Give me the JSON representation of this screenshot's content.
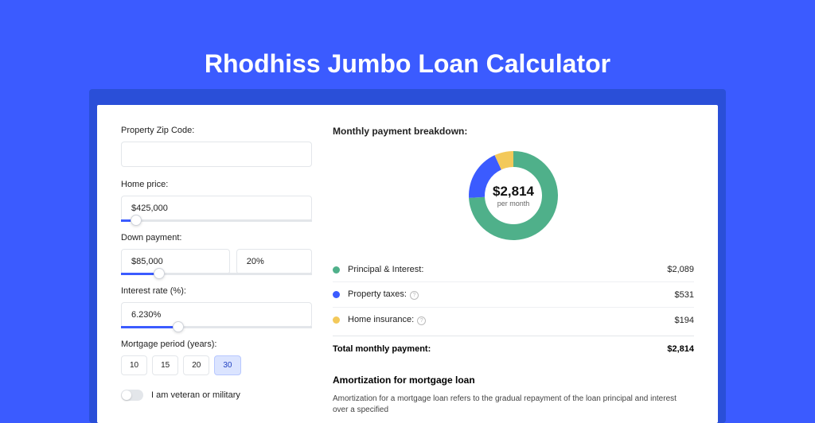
{
  "title": "Rhodhiss Jumbo Loan Calculator",
  "form": {
    "zip_label": "Property Zip Code:",
    "zip_value": "",
    "home_price_label": "Home price:",
    "home_price_value": "$425,000",
    "home_price_slider_pct": 8,
    "down_label": "Down payment:",
    "down_value": "$85,000",
    "down_pct_value": "20%",
    "down_slider_pct": 20,
    "rate_label": "Interest rate (%):",
    "rate_value": "6.230%",
    "rate_slider_pct": 30,
    "period_label": "Mortgage period (years):",
    "periods": [
      "10",
      "15",
      "20",
      "30"
    ],
    "period_active_index": 3,
    "veteran_label": "I am veteran or military"
  },
  "breakdown": {
    "title": "Monthly payment breakdown:",
    "donut": {
      "value": "$2,814",
      "sub": "per month",
      "segments": [
        {
          "label": "Principal & Interest",
          "color": "#4fb08a",
          "pct": 74.2
        },
        {
          "label": "Property taxes",
          "color": "#3b5bff",
          "pct": 18.9
        },
        {
          "label": "Home insurance",
          "color": "#f3c95a",
          "pct": 6.9
        }
      ]
    },
    "items": [
      {
        "label": "Principal & Interest:",
        "value": "$2,089",
        "color": "#4fb08a",
        "info": false
      },
      {
        "label": "Property taxes:",
        "value": "$531",
        "color": "#3b5bff",
        "info": true
      },
      {
        "label": "Home insurance:",
        "value": "$194",
        "color": "#f3c95a",
        "info": true
      }
    ],
    "total_label": "Total monthly payment:",
    "total_value": "$2,814"
  },
  "amortization": {
    "title": "Amortization for mortgage loan",
    "text": "Amortization for a mortgage loan refers to the gradual repayment of the loan principal and interest over a specified"
  },
  "colors": {
    "page_bg": "#3b5bff",
    "accent": "#3b5bff"
  }
}
